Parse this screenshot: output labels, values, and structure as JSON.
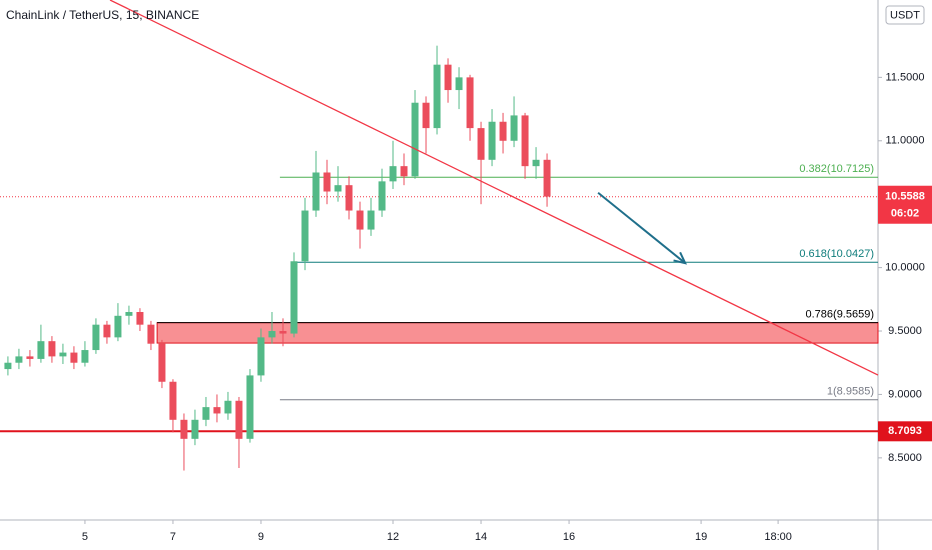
{
  "chart_data": {
    "type": "candlestick",
    "title": "ChainLink / TetherUS, 15, BINANCE",
    "currency": "USDT",
    "xlim": [
      3.07,
      23.02
    ],
    "ylim": [
      8.01,
      12.11
    ],
    "xticks": [
      5,
      7,
      9,
      12,
      14,
      16,
      19,
      {
        "value": 20.75,
        "label": "18:00"
      }
    ],
    "yticks": [
      {
        "value": 8.5,
        "label": "8.5000"
      },
      {
        "value": 9.0,
        "label": "9.0000"
      },
      {
        "value": 9.5,
        "label": "9.5000"
      },
      {
        "value": 10.0,
        "label": "10.0000"
      },
      {
        "value": 11.0,
        "label": "11.0000"
      },
      {
        "value": 11.5,
        "label": "11.5000"
      }
    ],
    "up_color": "#53b987",
    "down_color": "#eb4d5c",
    "x": [
      3.25,
      3.5,
      3.75,
      4,
      4.25,
      4.5,
      4.75,
      5,
      5.25,
      5.5,
      5.75,
      6,
      6.25,
      6.5,
      6.75,
      7,
      7.25,
      7.5,
      7.75,
      8,
      8.25,
      8.5,
      8.75,
      9,
      9.25,
      9.5,
      9.75,
      10,
      10.25,
      10.5,
      10.75,
      11,
      11.25,
      11.5,
      11.75,
      12,
      12.25,
      12.5,
      12.75,
      13,
      13.25,
      13.5,
      13.75,
      14,
      14.25,
      14.5,
      14.75,
      15,
      15.25,
      15.5
    ],
    "open": [
      9.2,
      9.25,
      9.3,
      9.28,
      9.42,
      9.3,
      9.33,
      9.25,
      9.35,
      9.55,
      9.45,
      9.62,
      9.65,
      9.55,
      9.4,
      9.1,
      8.8,
      8.65,
      8.8,
      8.9,
      8.85,
      8.95,
      8.65,
      9.15,
      9.45,
      9.5,
      9.48,
      10.05,
      10.45,
      10.75,
      10.6,
      10.65,
      10.45,
      10.3,
      10.45,
      10.68,
      10.8,
      10.72,
      11.3,
      11.1,
      11.6,
      11.4,
      11.5,
      11.1,
      10.85,
      11.15,
      11.0,
      11.2,
      10.8,
      10.85
    ],
    "high": [
      9.3,
      9.36,
      9.35,
      9.55,
      9.46,
      9.4,
      9.38,
      9.42,
      9.6,
      9.58,
      9.72,
      9.7,
      9.68,
      9.58,
      9.43,
      9.12,
      8.85,
      8.88,
      8.98,
      9.0,
      9.02,
      8.98,
      9.2,
      9.52,
      9.65,
      9.6,
      10.12,
      10.55,
      10.92,
      10.85,
      10.8,
      10.72,
      10.52,
      10.55,
      10.78,
      11.0,
      10.9,
      11.4,
      11.35,
      11.75,
      11.65,
      11.58,
      11.52,
      11.15,
      11.25,
      11.22,
      11.35,
      11.22,
      10.95,
      10.9
    ],
    "low": [
      9.15,
      9.2,
      9.22,
      9.25,
      9.25,
      9.24,
      9.2,
      9.22,
      9.32,
      9.4,
      9.42,
      9.55,
      9.5,
      9.35,
      9.05,
      8.7,
      8.4,
      8.6,
      8.75,
      8.78,
      8.8,
      8.42,
      8.62,
      9.1,
      9.4,
      9.38,
      9.45,
      9.98,
      10.4,
      10.5,
      10.52,
      10.38,
      10.15,
      10.25,
      10.4,
      10.62,
      10.65,
      10.7,
      10.9,
      11.05,
      11.3,
      11.25,
      11.0,
      10.5,
      10.8,
      10.9,
      10.95,
      10.7,
      10.7,
      10.48
    ],
    "close": [
      9.25,
      9.3,
      9.28,
      9.42,
      9.3,
      9.33,
      9.25,
      9.35,
      9.55,
      9.45,
      9.62,
      9.65,
      9.55,
      9.4,
      9.1,
      8.8,
      8.65,
      8.8,
      8.9,
      8.85,
      8.95,
      8.65,
      9.15,
      9.45,
      9.5,
      9.48,
      10.05,
      10.45,
      10.75,
      10.6,
      10.65,
      10.45,
      10.3,
      10.45,
      10.68,
      10.8,
      10.72,
      11.3,
      11.1,
      11.6,
      11.4,
      11.5,
      11.1,
      10.85,
      11.15,
      11.0,
      11.2,
      10.8,
      10.85,
      10.56
    ],
    "trend_line": {
      "x": [
        5.57,
        23.02
      ],
      "y": [
        12.11,
        9.153
      ],
      "color": "#f23645"
    },
    "arrow": {
      "x": [
        16.66,
        18.64
      ],
      "y": [
        10.59,
        10.035
      ],
      "color": "#1f6f8b"
    },
    "fib_levels": [
      {
        "label": "0.382(10.7125)",
        "value": 10.7125,
        "start": 9.43,
        "color": "#4caf50"
      },
      {
        "label": "0.618(10.0427)",
        "value": 10.0427,
        "start": 9.72,
        "color": "#0e7c7b"
      },
      {
        "label": "0.786(9.5659)",
        "value": 9.5659,
        "start": 6.64,
        "color": "#000000"
      },
      {
        "label": "1(8.9585)",
        "value": 8.9585,
        "start": 9.43,
        "color": "#787b86"
      }
    ],
    "zone": {
      "from": 9.405,
      "to": 9.5659,
      "start": 6.64,
      "color": "#f77c80"
    },
    "support": {
      "value": 8.7093,
      "color": "#e0121c"
    },
    "last_price": {
      "value": 10.5588,
      "countdown": "06:02",
      "color": "#f23645"
    }
  }
}
